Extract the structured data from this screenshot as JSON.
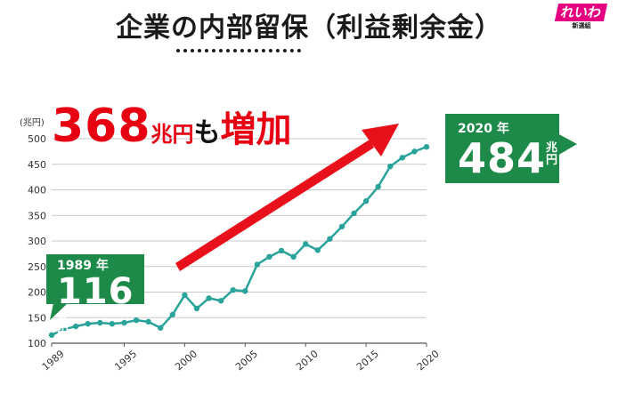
{
  "title": "企業の内部留保（利益剰余金）",
  "logo": {
    "main": "れいわ",
    "sub": "新選組"
  },
  "headline": {
    "number": "368",
    "unit": "兆円",
    "particle": "も",
    "action": "増加"
  },
  "callout_start": {
    "year": "1989 年",
    "value": "116",
    "unit_top": "兆",
    "unit_bottom": "円"
  },
  "callout_end": {
    "year": "2020 年",
    "value": "484",
    "unit_top": "兆",
    "unit_bottom": "円"
  },
  "colors": {
    "line": "#2aa39a",
    "callout": "#1e8a4a",
    "accent": "#e60012",
    "arrow": "#e8111b"
  },
  "chart_data": {
    "type": "line",
    "ylabel": "(兆円)",
    "ylim": [
      100,
      500
    ],
    "yticks": [
      "100",
      "150",
      "200",
      "250",
      "300",
      "350",
      "400",
      "450",
      "500"
    ],
    "xticks": [
      "1989",
      "1995",
      "2000",
      "2005",
      "2010",
      "2015",
      "2020"
    ],
    "grid": true,
    "x": [
      1989,
      1990,
      1991,
      1992,
      1993,
      1994,
      1995,
      1996,
      1997,
      1998,
      1999,
      2000,
      2001,
      2002,
      2003,
      2004,
      2005,
      2006,
      2007,
      2008,
      2009,
      2010,
      2011,
      2012,
      2013,
      2014,
      2015,
      2016,
      2017,
      2018,
      2019,
      2020
    ],
    "values": [
      116,
      127,
      133,
      138,
      140,
      138,
      140,
      145,
      142,
      130,
      156,
      194,
      168,
      188,
      183,
      204,
      202,
      254,
      269,
      281,
      269,
      294,
      282,
      304,
      328,
      354,
      378,
      406,
      446,
      463,
      475,
      484
    ]
  }
}
